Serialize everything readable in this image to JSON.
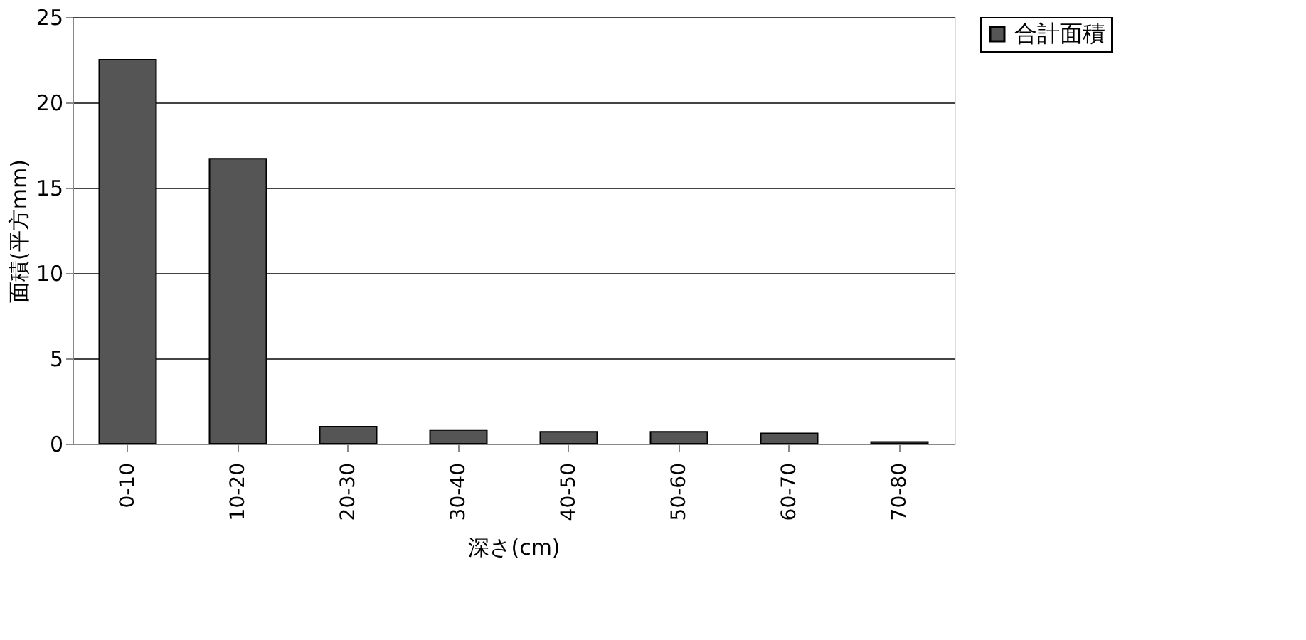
{
  "chart_data": {
    "type": "bar",
    "xlabel": "深さ(cm)",
    "ylabel": "面積(平方mm)",
    "categories": [
      "0-10",
      "10-20",
      "20-30",
      "30-40",
      "40-50",
      "50-60",
      "60-70",
      "70-80"
    ],
    "series": [
      {
        "name": "合計面積",
        "color": "#555555",
        "values": [
          22.5,
          16.7,
          1.0,
          0.8,
          0.7,
          0.7,
          0.6,
          0.1
        ]
      }
    ],
    "ylim": [
      0,
      25
    ],
    "yticks": [
      0,
      5,
      10,
      15,
      20,
      25
    ],
    "grid": "y",
    "legend": "right"
  }
}
